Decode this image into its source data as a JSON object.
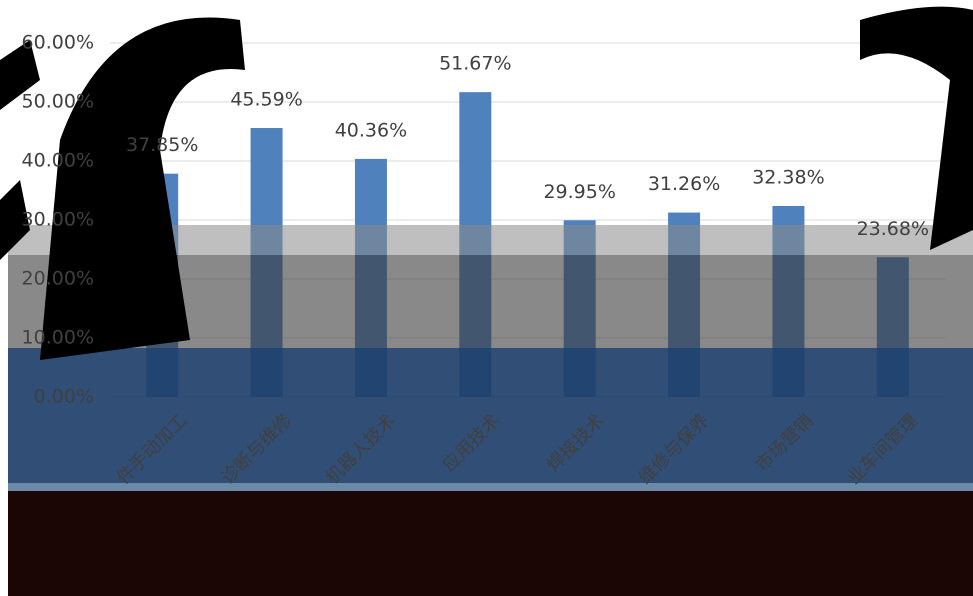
{
  "chart_data": {
    "type": "bar",
    "categories": [
      "件手动加工",
      "诊断与维修",
      "机器人技术",
      "应用技术",
      "焊接技术",
      "维修与保养",
      "市场营销",
      "业车间管理"
    ],
    "values": [
      37.85,
      45.59,
      40.36,
      51.67,
      29.95,
      31.26,
      32.38,
      23.68
    ],
    "value_labels": [
      "37.85%",
      "45.59%",
      "40.36%",
      "51.67%",
      "29.95%",
      "31.26%",
      "32.38%",
      "23.68%"
    ],
    "color": "#4f81bd",
    "ylim": [
      0,
      60
    ],
    "yticks": [
      {
        "value": 0,
        "label": "0.00%"
      },
      {
        "value": 10,
        "label": "10.00%"
      },
      {
        "value": 20,
        "label": "20.00%"
      },
      {
        "value": 30,
        "label": "30.00%"
      },
      {
        "value": 40,
        "label": "40.00%"
      },
      {
        "value": 50,
        "label": "50.00%"
      },
      {
        "value": 60,
        "label": "60.00%"
      }
    ],
    "grid": true
  }
}
